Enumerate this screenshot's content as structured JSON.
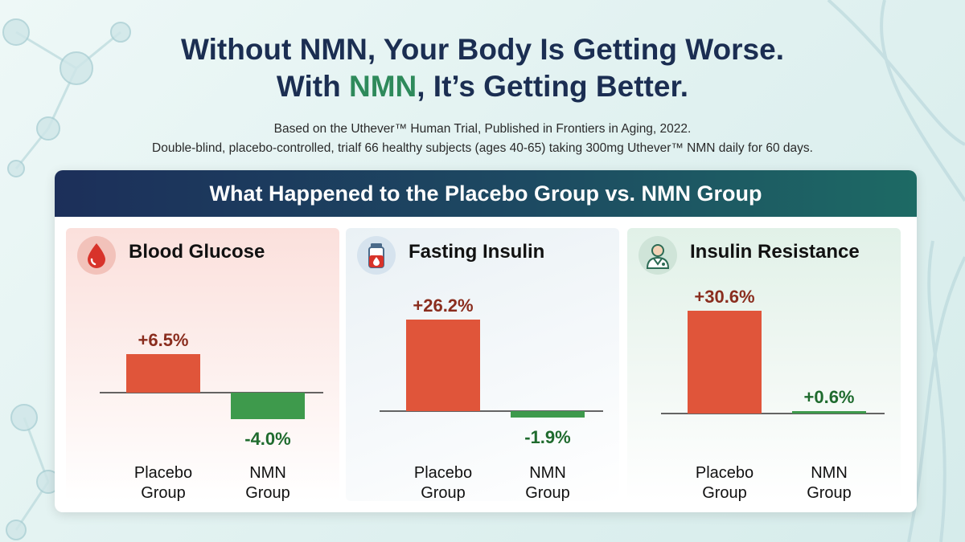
{
  "headline": {
    "line1": "Without NMN, Your Body Is Getting Worse.",
    "line2_prefix": "With ",
    "line2_accent": "NMN",
    "line2_suffix": ", It’s Getting Better."
  },
  "subtitle": {
    "line1": "Based on the Uthever™ Human Trial, Published in Frontiers in Aging, 2022.",
    "line2": "Double-blind, placebo-controlled, trialf 66 healthy subjects (ages 40-65) taking 300mg Uthever™ NMN daily for 60 days."
  },
  "banner": {
    "title": "What Happened to the Placebo Group vs. NMN Group"
  },
  "colors": {
    "placebo": "#e0553a",
    "nmn": "#3e9a4c",
    "placebo_text": "#8a2d1e",
    "nmn_text": "#1f6b2e"
  },
  "icons": [
    "blood-drop-icon",
    "insulin-vial-icon",
    "doctor-icon"
  ],
  "chart_data": [
    {
      "type": "bar",
      "title": "Blood Glucose",
      "categories": [
        "Placebo Group",
        "NMN Group"
      ],
      "category_lines": [
        [
          "Placebo",
          "Group"
        ],
        [
          "NMN",
          "Group"
        ]
      ],
      "values": [
        6.5,
        -4.0
      ],
      "value_labels": [
        "+6.5%",
        "-4.0%"
      ],
      "ylim": [
        -4.0,
        6.5
      ],
      "grid": false
    },
    {
      "type": "bar",
      "title": "Fasting Insulin",
      "categories": [
        "Placebo Group",
        "NMN Group"
      ],
      "category_lines": [
        [
          "Placebo",
          "Group"
        ],
        [
          "NMN",
          "Group"
        ]
      ],
      "values": [
        26.2,
        -1.9
      ],
      "value_labels": [
        "+26.2%",
        "-1.9%"
      ],
      "ylim": [
        -1.9,
        26.2
      ],
      "grid": false
    },
    {
      "type": "bar",
      "title": "Insulin Resistance",
      "categories": [
        "Placebo Group",
        "NMN Group"
      ],
      "category_lines": [
        [
          "Placebo",
          "Group"
        ],
        [
          "NMN",
          "Group"
        ]
      ],
      "values": [
        30.6,
        0.6
      ],
      "value_labels": [
        "+30.6%",
        "+0.6%"
      ],
      "ylim": [
        0,
        30.6
      ],
      "grid": false
    }
  ]
}
